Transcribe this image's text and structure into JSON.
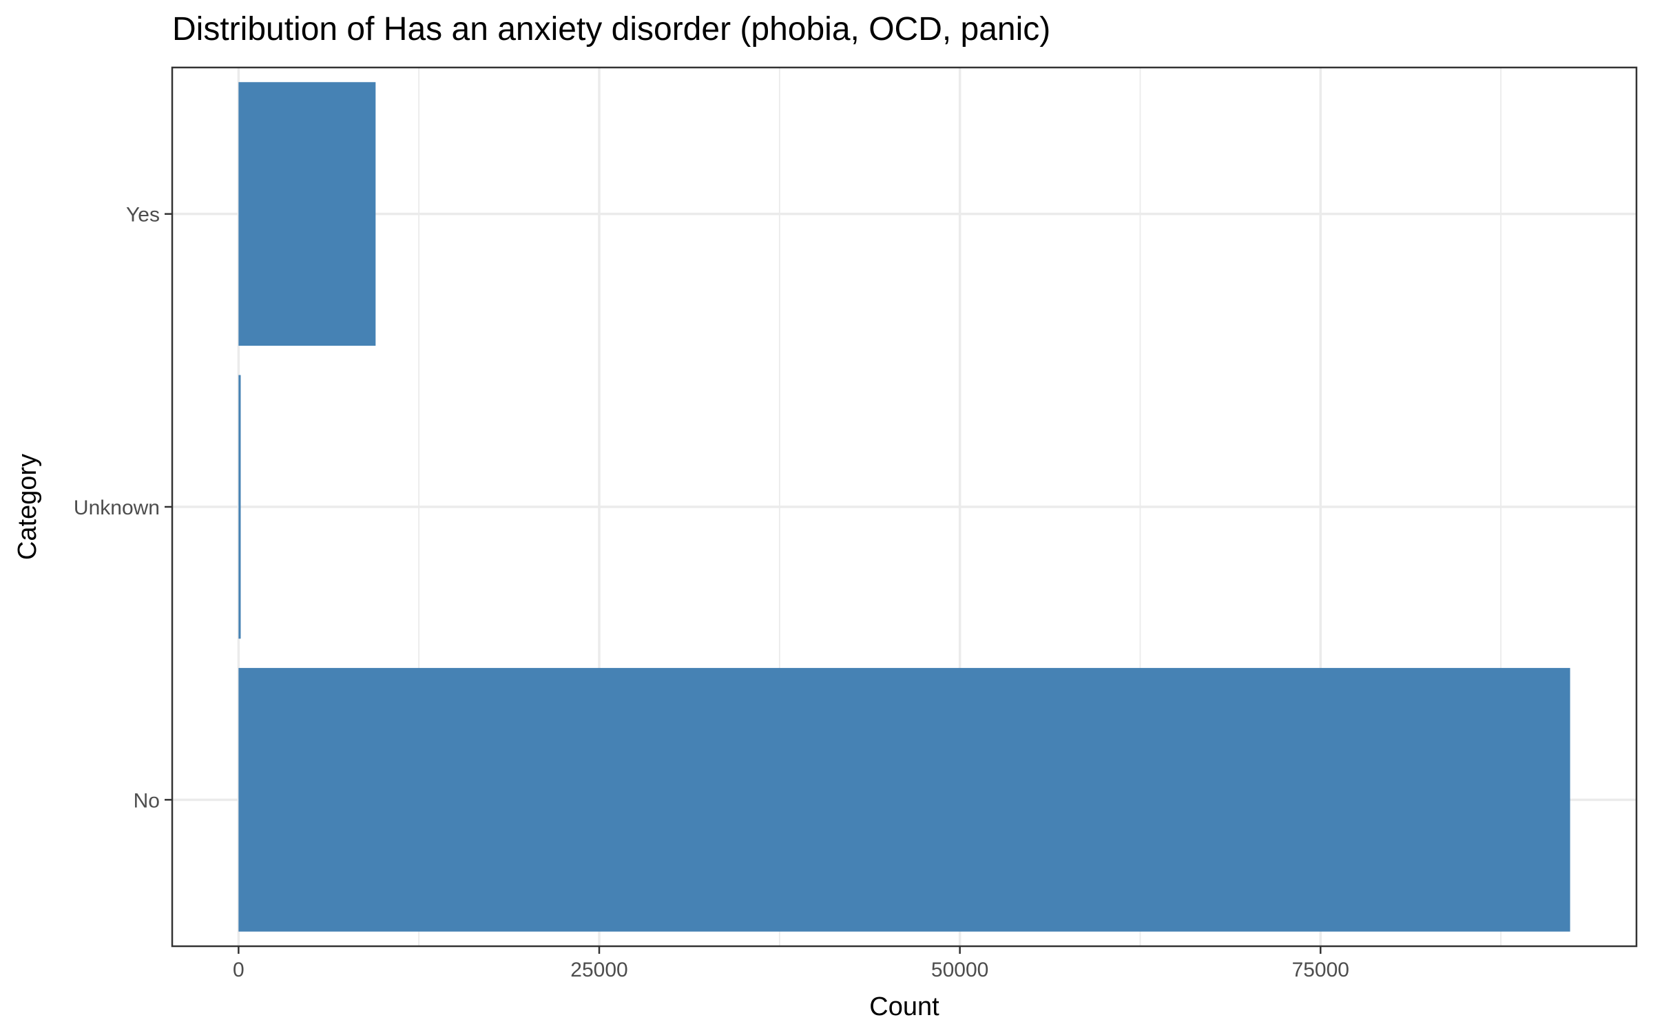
{
  "chart_data": {
    "type": "bar",
    "orientation": "horizontal",
    "title": "Distribution of Has an anxiety disorder (phobia, OCD, panic)",
    "xlabel": "Count",
    "ylabel": "Category",
    "categories": [
      "No",
      "Unknown",
      "Yes"
    ],
    "values": [
      92300,
      150,
      9500
    ],
    "xlim": [
      -4600,
      96900
    ],
    "x_ticks": [
      0,
      25000,
      50000,
      75000
    ],
    "x_tick_labels": [
      "0",
      "25000",
      "50000",
      "75000"
    ],
    "grid": true,
    "bar_color": "#4682b4",
    "legend": "none"
  }
}
